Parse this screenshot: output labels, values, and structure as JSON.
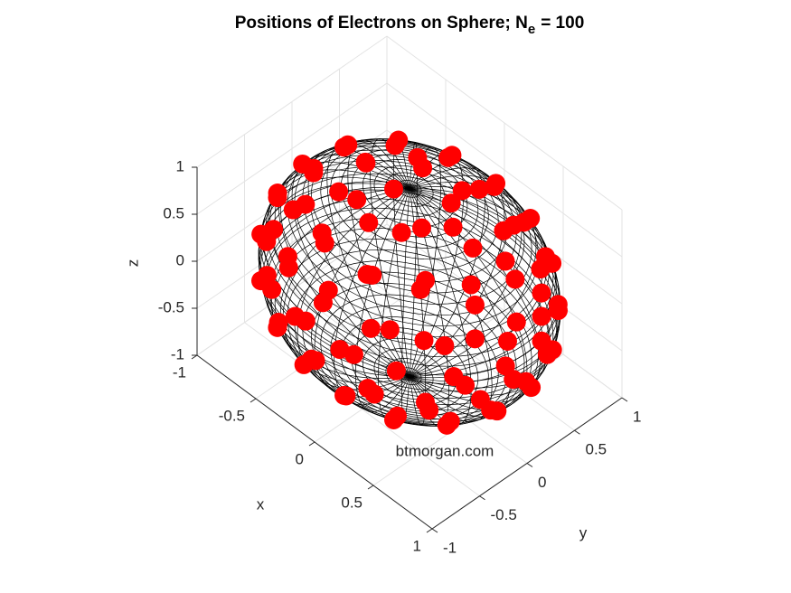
{
  "chart_data": {
    "type": "scatter3d",
    "title": "Positions of Electrons on Sphere; N",
    "title_subscript": "e",
    "title_suffix": "= 100",
    "xlabel": "x",
    "ylabel": "y",
    "zlabel": "z",
    "annotation": "btmorgan.com",
    "color": "#ff0000",
    "grid": true,
    "xlim": [
      -1,
      1
    ],
    "ylim": [
      -1,
      1
    ],
    "zlim": [
      -1,
      1
    ],
    "xticks": [
      -1,
      -0.5,
      0,
      0.5,
      1
    ],
    "yticks": [
      -1,
      -0.5,
      0,
      0.5,
      1
    ],
    "zticks": [
      -1,
      -0.5,
      0,
      0.5,
      1
    ],
    "x": [
      0.37,
      0.19,
      -0.19,
      -0.37,
      -0.19,
      0.19,
      0.32,
      0,
      -0.32,
      -0.32,
      0,
      0.32,
      0.67,
      0.49,
      0.18,
      -0.18,
      -0.49,
      -0.67,
      -0.67,
      -0.49,
      -0.18,
      0.18,
      0.49,
      0.67,
      0.69,
      0.6,
      0.35,
      0,
      -0.35,
      -0.6,
      -0.69,
      -0.6,
      -0.35,
      0,
      0.35,
      0.6,
      0.91,
      0.84,
      0.64,
      0.35,
      0,
      -0.35,
      -0.64,
      -0.84,
      -0.91,
      -0.84,
      -0.64,
      -0.35,
      0,
      0.35,
      0.64,
      0.84,
      0.89,
      0.76,
      0.51,
      0.18,
      -0.18,
      -0.51,
      -0.76,
      -0.89,
      -0.89,
      -0.76,
      -0.51,
      -0.18,
      0.18,
      0.51,
      0.76,
      0.89,
      0.97,
      0.82,
      0.55,
      0.19,
      -0.19,
      -0.55,
      -0.82,
      -0.97,
      -0.97,
      -0.82,
      -0.55,
      -0.19,
      0.19,
      0.55,
      0.82,
      0.97,
      0.99,
      0.91,
      0.7,
      0.38,
      0,
      -0.38,
      -0.7,
      -0.91,
      -0.99,
      -0.91,
      -0.7,
      -0.38,
      0,
      0.38,
      0.7,
      0.91
    ],
    "y": [
      0,
      0.32,
      0.32,
      0,
      -0.32,
      -0.32,
      0.19,
      0.37,
      0.19,
      -0.19,
      -0.37,
      -0.19,
      0.18,
      0.49,
      0.67,
      0.67,
      0.49,
      0.18,
      -0.18,
      -0.49,
      -0.67,
      -0.67,
      -0.49,
      -0.18,
      0,
      0.35,
      0.6,
      0.69,
      0.6,
      0.35,
      0,
      -0.35,
      -0.6,
      -0.69,
      -0.6,
      -0.35,
      0,
      0.35,
      0.64,
      0.84,
      0.91,
      0.84,
      0.64,
      0.35,
      0,
      -0.35,
      -0.64,
      -0.84,
      -0.91,
      -0.84,
      -0.64,
      -0.35,
      0.18,
      0.51,
      0.76,
      0.89,
      0.89,
      0.76,
      0.51,
      0.18,
      -0.18,
      -0.51,
      -0.76,
      -0.89,
      -0.89,
      -0.76,
      -0.51,
      -0.18,
      0.19,
      0.55,
      0.82,
      0.97,
      0.97,
      0.82,
      0.55,
      0.19,
      -0.19,
      -0.55,
      -0.82,
      -0.97,
      -0.97,
      -0.82,
      -0.55,
      -0.19,
      0,
      0.38,
      0.7,
      0.91,
      0.99,
      0.91,
      0.7,
      0.38,
      0,
      -0.38,
      -0.7,
      -0.91,
      -0.99,
      -0.91,
      -0.7,
      -0.38
    ],
    "z": [
      0.93,
      0.93,
      0.93,
      0.93,
      0.93,
      0.93,
      -0.93,
      -0.93,
      -0.93,
      -0.93,
      -0.93,
      -0.93,
      0.72,
      0.72,
      0.72,
      0.72,
      0.72,
      0.72,
      0.72,
      0.72,
      0.72,
      0.72,
      0.72,
      0.72,
      -0.72,
      -0.72,
      -0.72,
      -0.72,
      -0.72,
      -0.72,
      -0.72,
      -0.72,
      -0.72,
      -0.72,
      -0.72,
      -0.72,
      0.42,
      0.42,
      0.42,
      0.42,
      0.42,
      0.42,
      0.42,
      0.42,
      0.42,
      0.42,
      0.42,
      0.42,
      0.42,
      0.42,
      0.42,
      0.42,
      -0.42,
      -0.42,
      -0.42,
      -0.42,
      -0.42,
      -0.42,
      -0.42,
      -0.42,
      -0.42,
      -0.42,
      -0.42,
      -0.42,
      -0.42,
      -0.42,
      -0.42,
      -0.42,
      0.14,
      0.14,
      0.14,
      0.14,
      0.14,
      0.14,
      0.14,
      0.14,
      0.14,
      0.14,
      0.14,
      0.14,
      0.14,
      0.14,
      0.14,
      0.14,
      -0.14,
      -0.14,
      -0.14,
      -0.14,
      -0.14,
      -0.14,
      -0.14,
      -0.14,
      -0.14,
      -0.14,
      -0.14,
      -0.14,
      -0.14,
      -0.14,
      -0.14,
      -0.14
    ]
  }
}
